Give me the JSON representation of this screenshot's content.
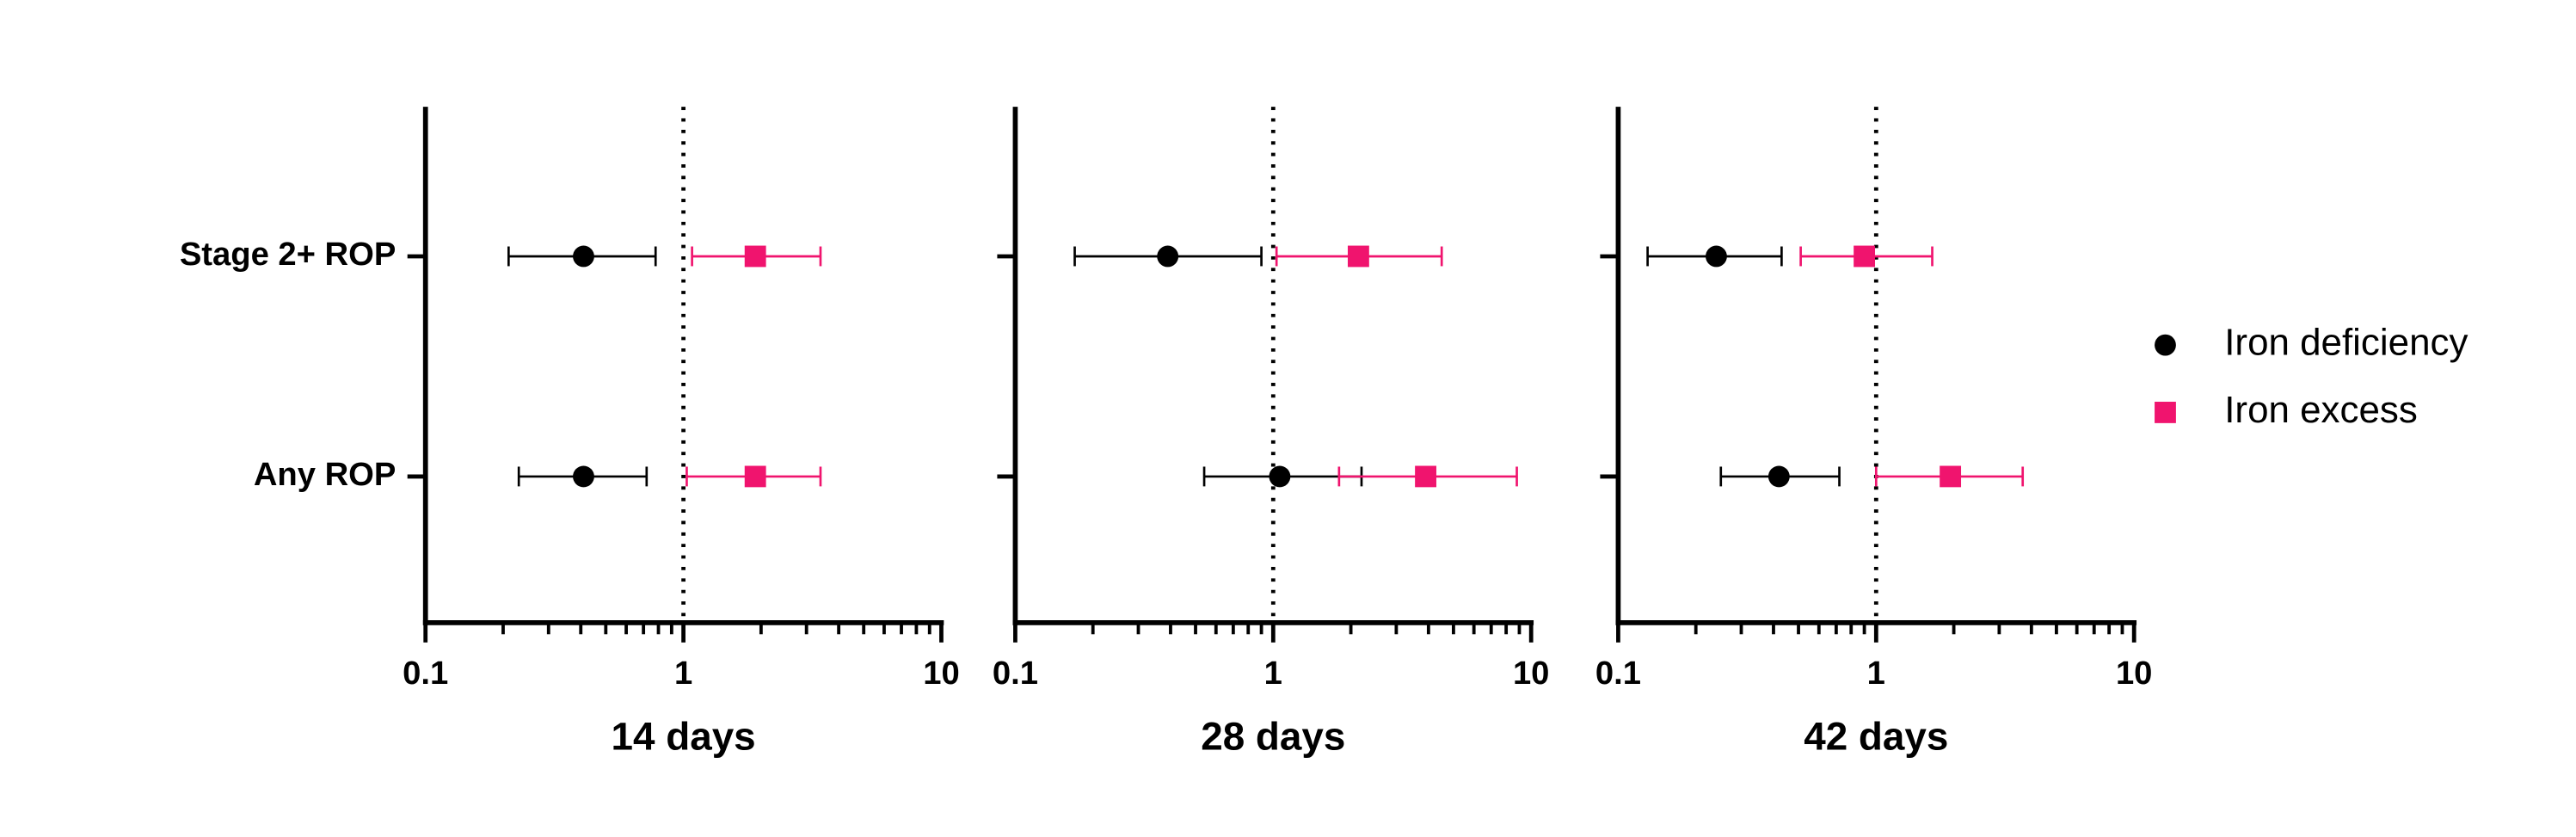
{
  "chart_data": [
    {
      "type": "forest",
      "x_label": "14 days",
      "categories": [
        "Stage 2+ ROP",
        "Any ROP"
      ],
      "series": [
        {
          "name": "Iron deficiency",
          "color": "#000000",
          "marker": "circle",
          "values": [
            0.41,
            0.41
          ],
          "lower": [
            0.21,
            0.23
          ],
          "upper": [
            0.78,
            0.72
          ]
        },
        {
          "name": "Iron excess",
          "color": "#f0146e",
          "marker": "square",
          "values": [
            1.9,
            1.9
          ],
          "lower": [
            1.08,
            1.03
          ],
          "upper": [
            3.4,
            3.4
          ]
        }
      ],
      "xlim": [
        0.1,
        10
      ],
      "xticks": [
        0.1,
        1,
        10
      ],
      "log_x": true,
      "reference_line": 1
    },
    {
      "type": "forest",
      "x_label": "28 days",
      "categories": [
        null,
        null
      ],
      "series": [
        {
          "color": "#000000",
          "marker": "circle",
          "values": [
            0.39,
            1.06
          ],
          "lower": [
            0.17,
            0.54
          ],
          "upper": [
            0.9,
            2.2
          ]
        },
        {
          "color": "#f0146e",
          "marker": "square",
          "values": [
            2.14,
            3.9
          ],
          "lower": [
            1.03,
            1.8
          ],
          "upper": [
            4.5,
            8.8
          ]
        }
      ],
      "xlim": [
        0.1,
        10
      ],
      "xticks": [
        0.1,
        1,
        10
      ],
      "log_x": true,
      "reference_line": 1
    },
    {
      "type": "forest",
      "x_label": "42 days",
      "categories": [
        null,
        null
      ],
      "series": [
        {
          "color": "#000000",
          "marker": "circle",
          "values": [
            0.24,
            0.42
          ],
          "lower": [
            0.13,
            0.25
          ],
          "upper": [
            0.43,
            0.72
          ]
        },
        {
          "color": "#f0146e",
          "marker": "square",
          "values": [
            0.9,
            1.94
          ],
          "lower": [
            0.51,
            1.0
          ],
          "upper": [
            1.65,
            3.7
          ]
        }
      ],
      "xlim": [
        0.1,
        10
      ],
      "xticks": [
        0.1,
        1,
        10
      ],
      "log_x": true,
      "reference_line": 1
    }
  ],
  "legend": "right"
}
